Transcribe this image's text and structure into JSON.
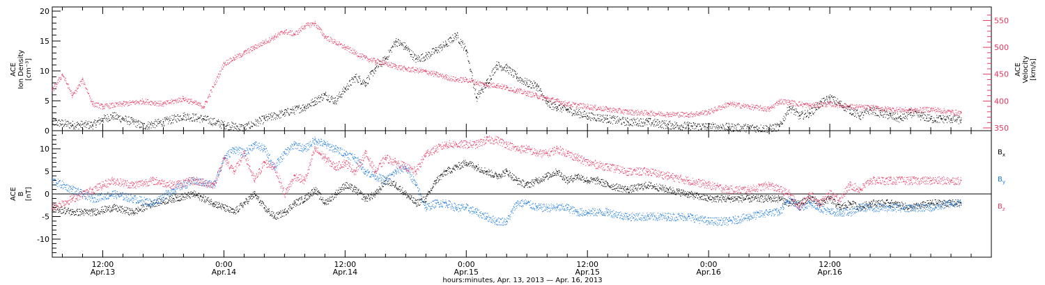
{
  "colors": {
    "black": "#000000",
    "pink": "#e8355f",
    "blue": "#1778e0"
  },
  "chart_data": [
    {
      "type": "scatter",
      "panel": "top",
      "ylabel_lines": [
        "ACE",
        "Ion Density",
        "[cm⁻³]"
      ],
      "y2label_lines": [
        "ACE",
        "Velocity",
        "[km/s]"
      ],
      "xlim_hours": [
        -17,
        76
      ],
      "ylim": [
        0,
        20
      ],
      "y2lim": [
        350,
        570
      ],
      "yticks": [
        "0",
        "5",
        "10",
        "15",
        "20"
      ],
      "y2ticks": [
        "350",
        "400",
        "450",
        "500",
        "550"
      ],
      "series": [
        {
          "color": "black",
          "axis": "left",
          "x": [
            -17,
            -15,
            -13,
            -12,
            -11,
            -10,
            -9,
            -8,
            -6,
            -4,
            -2,
            0,
            2,
            4,
            6,
            8,
            9,
            10,
            11,
            12,
            13,
            14,
            15,
            16,
            17,
            18,
            19,
            20,
            21,
            22,
            23,
            24,
            25,
            26,
            27,
            28,
            29,
            30,
            31,
            32,
            33,
            34,
            36,
            38,
            40,
            42,
            44,
            46,
            48,
            50,
            52,
            54,
            55,
            56,
            57,
            58,
            59,
            60,
            61,
            62,
            63,
            64,
            65,
            66,
            67,
            68,
            69,
            70,
            71,
            72,
            73
          ],
          "y": [
            1.5,
            1.0,
            1.0,
            2.0,
            2.5,
            2.0,
            1.5,
            0.8,
            1.5,
            2.5,
            2.0,
            1.0,
            0.5,
            2.0,
            3.0,
            4.0,
            5.0,
            6.0,
            5.0,
            7.0,
            9.0,
            8.0,
            10.5,
            12.0,
            15.0,
            14.0,
            12.0,
            12.5,
            13.5,
            14.5,
            16.0,
            13.5,
            5.5,
            8.0,
            11.0,
            10.5,
            9.0,
            8.0,
            7.5,
            4.5,
            4.0,
            3.5,
            2.5,
            2.0,
            1.5,
            1.5,
            1.0,
            0.8,
            0.7,
            0.6,
            0.5,
            0.4,
            0.7,
            4.0,
            2.5,
            3.0,
            4.5,
            5.5,
            4.5,
            3.5,
            2.5,
            3.5,
            3.0,
            2.5,
            2.0,
            3.0,
            2.5,
            2.0,
            2.0,
            2.0,
            1.8
          ]
        },
        {
          "color": "pink",
          "axis": "right",
          "x": [
            -17,
            -16,
            -15,
            -14,
            -13,
            -12,
            -10,
            -8,
            -6,
            -4,
            -2,
            0,
            1,
            2,
            3,
            4,
            5,
            6,
            7,
            8,
            9,
            10,
            11,
            12,
            13,
            14,
            15,
            16,
            17,
            18,
            19,
            20,
            21,
            22,
            23,
            24,
            25,
            26,
            27,
            28,
            29,
            30,
            31,
            32,
            33,
            34,
            36,
            38,
            40,
            42,
            44,
            46,
            48,
            50,
            52,
            54,
            55,
            56,
            58,
            60,
            62,
            64,
            66,
            68,
            70,
            72,
            73
          ],
          "y": [
            420,
            450,
            410,
            440,
            395,
            390,
            395,
            400,
            395,
            405,
            390,
            470,
            480,
            490,
            500,
            510,
            520,
            530,
            525,
            540,
            545,
            520,
            510,
            500,
            490,
            480,
            475,
            470,
            465,
            460,
            458,
            455,
            450,
            445,
            440,
            440,
            435,
            430,
            430,
            425,
            420,
            415,
            410,
            405,
            400,
            395,
            390,
            385,
            380,
            378,
            376,
            375,
            380,
            395,
            390,
            385,
            400,
            398,
            392,
            395,
            390,
            388,
            385,
            383,
            385,
            380,
            378
          ]
        }
      ]
    },
    {
      "type": "scatter",
      "panel": "bottom",
      "ylabel_lines": [
        "ACE",
        "B",
        "[nT]"
      ],
      "xlim_hours": [
        -17,
        76
      ],
      "ylim": [
        -14,
        14
      ],
      "yticks": [
        "-10",
        "-5",
        "0",
        "5",
        "10"
      ],
      "legend": [
        {
          "label": "Bx",
          "main": "B",
          "sub": "x",
          "color": "black"
        },
        {
          "label": "By",
          "main": "B",
          "sub": "y",
          "color": "blue"
        },
        {
          "label": "Bz",
          "main": "B",
          "sub": "z",
          "color": "pink"
        }
      ],
      "series": [
        {
          "name": "Bx",
          "color": "black",
          "x": [
            -17,
            -15,
            -13,
            -11,
            -9,
            -7,
            -5,
            -3,
            -1,
            0,
            1,
            2,
            3,
            4,
            5,
            6,
            7,
            8,
            9,
            10,
            11,
            12,
            13,
            14,
            15,
            16,
            17,
            18,
            19,
            20,
            21,
            22,
            23,
            24,
            25,
            26,
            27,
            28,
            29,
            30,
            31,
            32,
            33,
            34,
            35,
            36,
            37,
            38,
            40,
            42,
            44,
            46,
            48,
            50,
            52,
            54,
            55,
            56,
            57,
            58,
            59,
            60,
            61,
            62,
            63,
            64,
            66,
            68,
            70,
            72,
            73
          ],
          "y": [
            -3,
            -4,
            -4,
            -3,
            -4,
            -2,
            -1,
            0,
            -2,
            -3,
            -4,
            -2,
            0,
            -3,
            -5,
            -4,
            -2,
            -1,
            1,
            -2,
            0,
            2,
            1,
            -1,
            0,
            3,
            2,
            0,
            -2,
            -1,
            3,
            5,
            6,
            7,
            6,
            5,
            4,
            5,
            3,
            2,
            3,
            4,
            5,
            3,
            4,
            3,
            3,
            2,
            1,
            2,
            1,
            0,
            -1,
            -1,
            -1,
            -1,
            -1,
            -2,
            -2,
            -1,
            -2,
            -1,
            -3,
            -2,
            -3,
            -2,
            -2,
            -3,
            -2,
            -2,
            -2
          ]
        },
        {
          "name": "By",
          "color": "blue",
          "x": [
            -17,
            -15,
            -13,
            -11,
            -9,
            -7,
            -5,
            -3,
            -1,
            0,
            1,
            2,
            3,
            4,
            5,
            6,
            7,
            8,
            9,
            10,
            11,
            12,
            13,
            14,
            15,
            16,
            17,
            18,
            19,
            20,
            21,
            22,
            23,
            24,
            25,
            26,
            27,
            28,
            29,
            30,
            31,
            32,
            33,
            34,
            35,
            36,
            38,
            40,
            42,
            44,
            46,
            48,
            50,
            52,
            54,
            55,
            56,
            57,
            58,
            59,
            60,
            61,
            62,
            63,
            64,
            66,
            68,
            70,
            72,
            73
          ],
          "y": [
            3,
            1,
            -1,
            0,
            -1,
            -2,
            1,
            3,
            2,
            8,
            10,
            9,
            11,
            10,
            6,
            9,
            11,
            10,
            12,
            11,
            10,
            9,
            8,
            5,
            4,
            3,
            5,
            6,
            2,
            -3,
            -2,
            -2,
            -3,
            -3,
            -4,
            -5,
            -6,
            -6,
            -2,
            -2,
            -3,
            -3,
            -3,
            -3,
            -4,
            -4,
            -4,
            -5,
            -5,
            -5,
            -5,
            -6,
            -6,
            -5,
            -4,
            -4,
            -1,
            -3,
            -2,
            -3,
            -4,
            -4,
            -4,
            -3,
            -3,
            -3,
            -3,
            -3,
            -2,
            -2
          ]
        },
        {
          "name": "Bz",
          "color": "pink",
          "x": [
            -17,
            -15,
            -13,
            -12,
            -11,
            -9,
            -7,
            -5,
            -3,
            -1,
            0,
            1,
            2,
            3,
            4,
            5,
            6,
            7,
            8,
            9,
            10,
            11,
            12,
            13,
            14,
            15,
            16,
            17,
            18,
            19,
            20,
            21,
            22,
            23,
            24,
            25,
            26,
            27,
            28,
            29,
            30,
            31,
            32,
            33,
            34,
            35,
            36,
            38,
            40,
            42,
            44,
            46,
            48,
            50,
            52,
            54,
            55,
            56,
            57,
            58,
            59,
            60,
            61,
            62,
            63,
            64,
            66,
            68,
            70,
            72,
            73
          ],
          "y": [
            -3,
            -1,
            1,
            2,
            3,
            2,
            3,
            2,
            3,
            2,
            8,
            5,
            9,
            3,
            7,
            6,
            0,
            4,
            3,
            10,
            8,
            6,
            7,
            5,
            9,
            5,
            8,
            7,
            6,
            5,
            9,
            10,
            11,
            11,
            11,
            11,
            12,
            12,
            11,
            10,
            10,
            9,
            9,
            10,
            9,
            8,
            7,
            6,
            5,
            5,
            4,
            3,
            2,
            1,
            1,
            2,
            1,
            0,
            -3,
            0,
            -2,
            0,
            -1,
            2,
            1,
            3,
            3,
            3,
            3,
            3,
            3
          ]
        }
      ],
      "zero_line": 0
    }
  ],
  "xaxis": {
    "ticks": [
      {
        "time": "12:00",
        "date": "Apr.13"
      },
      {
        "time": "0:00",
        "date": "Apr.14"
      },
      {
        "time": "12:00",
        "date": "Apr.14"
      },
      {
        "time": "0:00",
        "date": "Apr.15"
      },
      {
        "time": "12:00",
        "date": "Apr.15"
      },
      {
        "time": "0:00",
        "date": "Apr.16"
      },
      {
        "time": "12:00",
        "date": "Apr.16"
      }
    ],
    "tick_hours": [
      -12,
      0,
      12,
      24,
      36,
      48,
      60
    ],
    "title": "hours:minutes, Apr. 13, 2013 — Apr. 16, 2013"
  }
}
